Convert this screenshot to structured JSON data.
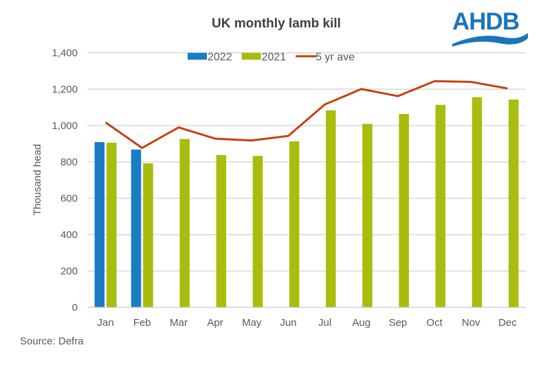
{
  "brand": {
    "logo_text": "AHDB",
    "logo_color": "#1b75bb"
  },
  "source": "Source: Defra",
  "chart_data": {
    "type": "bar",
    "title": "UK monthly lamb kill",
    "xlabel": "",
    "ylabel": "Thousand head",
    "ylim": [
      0,
      1400
    ],
    "yticks": [
      0,
      200,
      400,
      600,
      800,
      1000,
      1200,
      1400
    ],
    "ytick_labels": [
      "0",
      "200",
      "400",
      "600",
      "800",
      "1,000",
      "1,200",
      "1,400"
    ],
    "grid": true,
    "legend_position": "top-center",
    "categories": [
      "Jan",
      "Feb",
      "Mar",
      "Apr",
      "May",
      "Jun",
      "Jul",
      "Aug",
      "Sep",
      "Oct",
      "Nov",
      "Dec"
    ],
    "series": [
      {
        "name": "2022",
        "type": "bar",
        "color": "#1a7dc4",
        "values": [
          909,
          868,
          null,
          null,
          null,
          null,
          null,
          null,
          null,
          null,
          null,
          null
        ]
      },
      {
        "name": "2021",
        "type": "bar",
        "color": "#a8bd0c",
        "values": [
          906,
          792,
          926,
          838,
          833,
          913,
          1084,
          1009,
          1064,
          1114,
          1156,
          1143
        ]
      },
      {
        "name": "5 yr ave",
        "type": "line",
        "color": "#c8400f",
        "values": [
          1017,
          877,
          990,
          928,
          918,
          943,
          1116,
          1201,
          1162,
          1244,
          1240,
          1204
        ]
      }
    ]
  }
}
